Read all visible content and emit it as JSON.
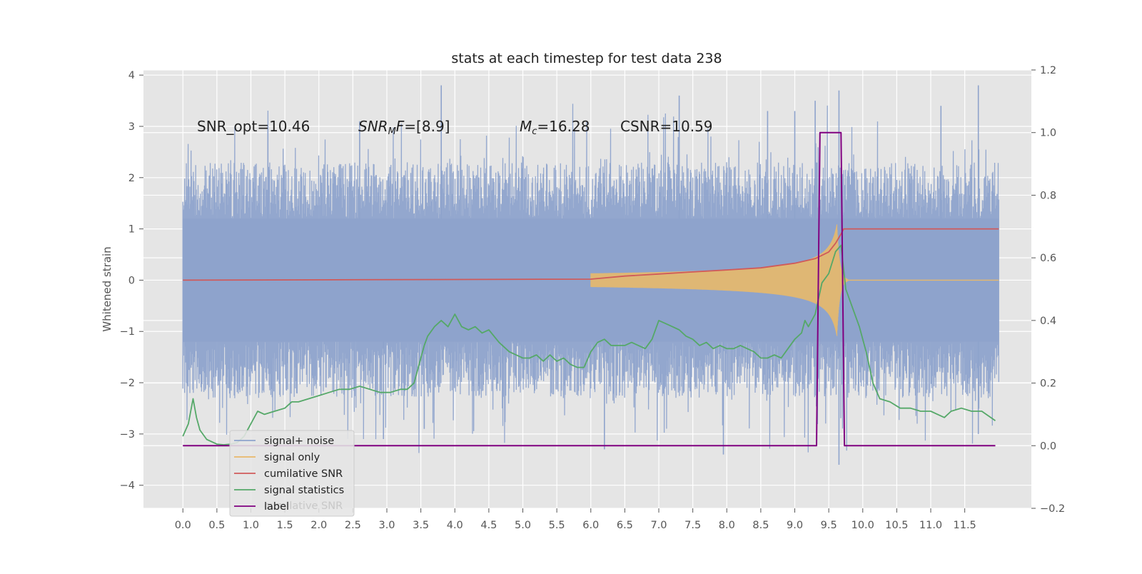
{
  "chart_data": {
    "type": "line",
    "title": "stats at each timestep for test data 238",
    "xlabel": "",
    "ylabel": "Whitened strain",
    "y2label": "",
    "xlim": [
      -0.58,
      12.48
    ],
    "ylim": [
      -4.45,
      4.1
    ],
    "y2lim": [
      -0.2,
      1.2
    ],
    "xticks": [
      "0.0",
      "0.5",
      "1.0",
      "1.5",
      "2.0",
      "2.5",
      "3.0",
      "3.5",
      "4.0",
      "4.5",
      "5.0",
      "5.5",
      "6.0",
      "6.5",
      "7.0",
      "7.5",
      "8.0",
      "8.5",
      "9.0",
      "9.5",
      "10.0",
      "10.5",
      "11.0",
      "11.5"
    ],
    "yticks": [
      "4",
      "3",
      "2",
      "1",
      "0",
      "−1",
      "−2",
      "−3",
      "−4"
    ],
    "y2ticks": [
      "1.2",
      "1.0",
      "0.8",
      "0.6",
      "0.4",
      "0.2",
      "0.0",
      "−0.2"
    ],
    "grid": true,
    "legend_position": "lower-left",
    "annotations": [
      {
        "text": "SNR_opt=10.46",
        "x": 0.2,
        "y": 3.0
      },
      {
        "text": "SNR_MF=[8.9]",
        "x": 2.6,
        "y": 3.0
      },
      {
        "text": "M_c=16.28",
        "x": 5.0,
        "y": 3.0
      },
      {
        "text": "CSNR=10.59",
        "x": 6.5,
        "y": 3.0
      }
    ],
    "ghost_legend_text": "cumilative SNR",
    "series": [
      {
        "name": "signal+ noise",
        "axis": "left",
        "color": "#8ea3cc",
        "envelope": {
          "t0": 0.0,
          "t1": 12.0,
          "core_low": -1.2,
          "core_high": 1.2,
          "low_min": -3.4,
          "high_max": 3.8
        },
        "spikes": [
          [
            1.25,
            3.0
          ],
          [
            2.6,
            3.1
          ],
          [
            3.8,
            3.8
          ],
          [
            6.0,
            -0.6
          ],
          [
            7.3,
            3.6
          ],
          [
            8.6,
            3.3
          ],
          [
            9.0,
            3.3
          ],
          [
            9.3,
            3.5
          ],
          [
            9.65,
            3.7
          ],
          [
            11.15,
            3.4
          ],
          [
            11.7,
            3.8
          ],
          [
            7.95,
            -3.4
          ],
          [
            6.2,
            -3.3
          ],
          [
            2.95,
            -3.1
          ],
          [
            9.65,
            -3.6
          ],
          [
            3.55,
            -2.9
          ],
          [
            4.7,
            -2.5
          ],
          [
            11.7,
            -3.0
          ]
        ]
      },
      {
        "name": "signal only",
        "axis": "left",
        "color": "#e8b96a",
        "chirp": {
          "t_start": 6.0,
          "t_merge": 9.62,
          "t_end": 9.78,
          "peak_amplitude": 1.1
        }
      },
      {
        "name": "cumilative SNR",
        "axis": "left",
        "color": "#d05a5a",
        "x": [
          0.0,
          6.0,
          6.5,
          7.0,
          7.5,
          8.0,
          8.5,
          9.0,
          9.3,
          9.5,
          9.6,
          9.68,
          9.72,
          12.0
        ],
        "values": [
          0.0,
          0.02,
          0.08,
          0.12,
          0.16,
          0.2,
          0.24,
          0.33,
          0.42,
          0.55,
          0.72,
          0.9,
          1.0,
          1.0
        ]
      },
      {
        "name": "signal statistics",
        "axis": "right",
        "color": "#55a868",
        "x": [
          0.0,
          0.08,
          0.15,
          0.2,
          0.25,
          0.35,
          0.5,
          0.6,
          0.7,
          0.8,
          0.9,
          1.0,
          1.1,
          1.2,
          1.35,
          1.5,
          1.6,
          1.7,
          1.85,
          2.0,
          2.15,
          2.3,
          2.45,
          2.6,
          2.75,
          2.9,
          3.05,
          3.2,
          3.3,
          3.4,
          3.5,
          3.55,
          3.6,
          3.7,
          3.8,
          3.9,
          4.0,
          4.1,
          4.2,
          4.3,
          4.4,
          4.5,
          4.65,
          4.8,
          4.9,
          5.0,
          5.1,
          5.2,
          5.3,
          5.4,
          5.5,
          5.6,
          5.7,
          5.8,
          5.9,
          6.0,
          6.1,
          6.2,
          6.3,
          6.4,
          6.5,
          6.6,
          6.7,
          6.8,
          6.9,
          7.0,
          7.1,
          7.2,
          7.3,
          7.4,
          7.5,
          7.6,
          7.7,
          7.8,
          7.9,
          8.0,
          8.1,
          8.2,
          8.3,
          8.4,
          8.5,
          8.6,
          8.7,
          8.8,
          8.9,
          9.0,
          9.1,
          9.15,
          9.2,
          9.3,
          9.4,
          9.5,
          9.6,
          9.68,
          9.75,
          9.85,
          9.95,
          10.05,
          10.15,
          10.25,
          10.4,
          10.55,
          10.7,
          10.85,
          11.0,
          11.1,
          11.2,
          11.3,
          11.45,
          11.6,
          11.75,
          11.95
        ],
        "values": [
          0.03,
          0.07,
          0.15,
          0.09,
          0.05,
          0.02,
          0.005,
          0.003,
          0.005,
          0.01,
          0.03,
          0.07,
          0.11,
          0.1,
          0.11,
          0.12,
          0.14,
          0.14,
          0.15,
          0.16,
          0.17,
          0.18,
          0.18,
          0.19,
          0.18,
          0.17,
          0.17,
          0.18,
          0.18,
          0.2,
          0.28,
          0.32,
          0.35,
          0.38,
          0.4,
          0.38,
          0.42,
          0.38,
          0.37,
          0.38,
          0.36,
          0.37,
          0.33,
          0.3,
          0.29,
          0.28,
          0.28,
          0.29,
          0.27,
          0.29,
          0.27,
          0.28,
          0.26,
          0.25,
          0.25,
          0.3,
          0.33,
          0.34,
          0.32,
          0.32,
          0.32,
          0.33,
          0.32,
          0.31,
          0.34,
          0.4,
          0.39,
          0.38,
          0.37,
          0.35,
          0.34,
          0.32,
          0.33,
          0.31,
          0.32,
          0.31,
          0.31,
          0.32,
          0.31,
          0.3,
          0.28,
          0.28,
          0.29,
          0.28,
          0.31,
          0.34,
          0.36,
          0.4,
          0.38,
          0.42,
          0.52,
          0.55,
          0.62,
          0.64,
          0.5,
          0.44,
          0.38,
          0.3,
          0.2,
          0.15,
          0.14,
          0.12,
          0.12,
          0.11,
          0.11,
          0.1,
          0.09,
          0.11,
          0.12,
          0.11,
          0.11,
          0.08
        ]
      },
      {
        "name": "label",
        "axis": "right",
        "color": "#800080",
        "x": [
          0.0,
          9.32,
          9.37,
          9.68,
          9.73,
          11.95
        ],
        "values": [
          0.0,
          0.0,
          1.0,
          1.0,
          0.0,
          0.0
        ]
      }
    ]
  }
}
